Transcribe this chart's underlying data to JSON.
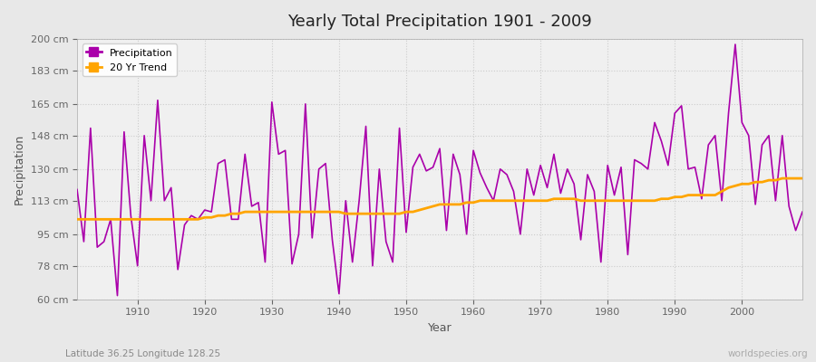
{
  "title": "Yearly Total Precipitation 1901 - 2009",
  "xlabel": "Year",
  "ylabel": "Precipitation",
  "subtitle": "Latitude 36.25 Longitude 128.25",
  "watermark": "worldspecies.org",
  "precip_color": "#AA00AA",
  "trend_color": "#FFA500",
  "bg_color": "#E8E8E8",
  "plot_bg_color": "#F0F0F0",
  "ylim": [
    60,
    200
  ],
  "yticks": [
    60,
    78,
    95,
    113,
    130,
    148,
    165,
    183,
    200
  ],
  "ytick_labels": [
    "60 cm",
    "78 cm",
    "95 cm",
    "113 cm",
    "130 cm",
    "148 cm",
    "165 cm",
    "183 cm",
    "200 cm"
  ],
  "years": [
    1901,
    1902,
    1903,
    1904,
    1905,
    1906,
    1907,
    1908,
    1909,
    1910,
    1911,
    1912,
    1913,
    1914,
    1915,
    1916,
    1917,
    1918,
    1919,
    1920,
    1921,
    1922,
    1923,
    1924,
    1925,
    1926,
    1927,
    1928,
    1929,
    1930,
    1931,
    1932,
    1933,
    1934,
    1935,
    1936,
    1937,
    1938,
    1939,
    1940,
    1941,
    1942,
    1943,
    1944,
    1945,
    1946,
    1947,
    1948,
    1949,
    1950,
    1951,
    1952,
    1953,
    1954,
    1955,
    1956,
    1957,
    1958,
    1959,
    1960,
    1961,
    1962,
    1963,
    1964,
    1965,
    1966,
    1967,
    1968,
    1969,
    1970,
    1971,
    1972,
    1973,
    1974,
    1975,
    1976,
    1977,
    1978,
    1979,
    1980,
    1981,
    1982,
    1983,
    1984,
    1985,
    1986,
    1987,
    1988,
    1989,
    1990,
    1991,
    1992,
    1993,
    1994,
    1995,
    1996,
    1997,
    1998,
    1999,
    2000,
    2001,
    2002,
    2003,
    2004,
    2005,
    2006,
    2007,
    2008,
    2009
  ],
  "precipitation": [
    119,
    91,
    152,
    88,
    91,
    103,
    62,
    150,
    105,
    78,
    148,
    113,
    167,
    113,
    120,
    76,
    100,
    105,
    103,
    108,
    107,
    133,
    135,
    103,
    103,
    138,
    110,
    112,
    80,
    166,
    138,
    140,
    79,
    95,
    165,
    93,
    130,
    133,
    92,
    63,
    113,
    80,
    113,
    153,
    78,
    130,
    91,
    80,
    152,
    96,
    131,
    138,
    129,
    131,
    141,
    97,
    138,
    127,
    95,
    140,
    128,
    120,
    113,
    130,
    127,
    118,
    95,
    130,
    116,
    132,
    120,
    138,
    117,
    130,
    122,
    92,
    127,
    118,
    80,
    132,
    116,
    131,
    84,
    135,
    133,
    130,
    155,
    145,
    132,
    160,
    164,
    130,
    131,
    114,
    143,
    148,
    113,
    160,
    197,
    155,
    148,
    111,
    143,
    148,
    113,
    148,
    110,
    97,
    107
  ],
  "trend": [
    103,
    103,
    103,
    103,
    103,
    103,
    103,
    103,
    103,
    103,
    103,
    103,
    103,
    103,
    103,
    103,
    103,
    103,
    103,
    104,
    104,
    105,
    105,
    106,
    106,
    107,
    107,
    107,
    107,
    107,
    107,
    107,
    107,
    107,
    107,
    107,
    107,
    107,
    107,
    107,
    106,
    106,
    106,
    106,
    106,
    106,
    106,
    106,
    106,
    107,
    107,
    108,
    109,
    110,
    111,
    111,
    111,
    111,
    112,
    112,
    113,
    113,
    113,
    113,
    113,
    113,
    113,
    113,
    113,
    113,
    113,
    114,
    114,
    114,
    114,
    113,
    113,
    113,
    113,
    113,
    113,
    113,
    113,
    113,
    113,
    113,
    113,
    114,
    114,
    115,
    115,
    116,
    116,
    116,
    116,
    116,
    118,
    120,
    121,
    122,
    122,
    123,
    123,
    124,
    124,
    125,
    125,
    125,
    125
  ]
}
